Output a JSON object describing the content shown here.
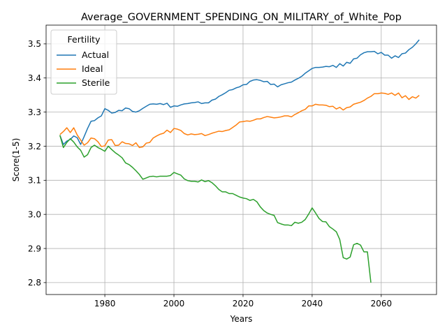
{
  "chart_data": {
    "type": "line",
    "title": "Average_GOVERNMENT_SPENDING_ON_MILITARY_of_White_Pop",
    "xlabel": "Years",
    "ylabel": "Score(1-5)",
    "xlim": [
      1963,
      2076
    ],
    "ylim": [
      2.765,
      3.555
    ],
    "xticks": [
      1980,
      2000,
      2020,
      2040,
      2060
    ],
    "yticks": [
      2.8,
      2.9,
      3.0,
      3.1,
      3.2,
      3.3,
      3.4,
      3.5
    ],
    "ytick_labels": [
      "2.8",
      "2.9",
      "3.0",
      "3.1",
      "3.2",
      "3.3",
      "3.4",
      "3.5"
    ],
    "grid": true,
    "legend": {
      "title": "Fertility",
      "position": "top-left"
    },
    "series": [
      {
        "name": "Actual",
        "color": "#1f77b4",
        "points": [
          [
            1967,
            3.232
          ],
          [
            1968,
            3.205
          ],
          [
            1969,
            3.215
          ],
          [
            1970,
            3.22
          ],
          [
            1971,
            3.23
          ],
          [
            1972,
            3.225
          ],
          [
            1973,
            3.205
          ],
          [
            1974,
            3.228
          ],
          [
            1975,
            3.252
          ],
          [
            1976,
            3.273
          ],
          [
            1977,
            3.275
          ],
          [
            1978,
            3.283
          ],
          [
            1979,
            3.289
          ],
          [
            1980,
            3.31
          ],
          [
            1981,
            3.305
          ],
          [
            1982,
            3.297
          ],
          [
            1983,
            3.299
          ],
          [
            1984,
            3.305
          ],
          [
            1985,
            3.304
          ],
          [
            1986,
            3.312
          ],
          [
            1987,
            3.31
          ],
          [
            1988,
            3.302
          ],
          [
            1989,
            3.3
          ],
          [
            1990,
            3.304
          ],
          [
            1991,
            3.311
          ],
          [
            1992,
            3.317
          ],
          [
            1993,
            3.323
          ],
          [
            1994,
            3.324
          ],
          [
            1995,
            3.323
          ],
          [
            1996,
            3.325
          ],
          [
            1997,
            3.322
          ],
          [
            1998,
            3.326
          ],
          [
            1999,
            3.314
          ],
          [
            2000,
            3.318
          ],
          [
            2001,
            3.317
          ],
          [
            2002,
            3.321
          ],
          [
            2003,
            3.324
          ],
          [
            2004,
            3.325
          ],
          [
            2005,
            3.327
          ],
          [
            2006,
            3.328
          ],
          [
            2007,
            3.33
          ],
          [
            2008,
            3.325
          ],
          [
            2009,
            3.327
          ],
          [
            2010,
            3.327
          ],
          [
            2011,
            3.335
          ],
          [
            2012,
            3.338
          ],
          [
            2013,
            3.346
          ],
          [
            2014,
            3.351
          ],
          [
            2015,
            3.357
          ],
          [
            2016,
            3.364
          ],
          [
            2017,
            3.366
          ],
          [
            2018,
            3.371
          ],
          [
            2019,
            3.374
          ],
          [
            2020,
            3.38
          ],
          [
            2021,
            3.381
          ],
          [
            2022,
            3.39
          ],
          [
            2023,
            3.394
          ],
          [
            2024,
            3.395
          ],
          [
            2025,
            3.393
          ],
          [
            2026,
            3.389
          ],
          [
            2027,
            3.39
          ],
          [
            2028,
            3.381
          ],
          [
            2029,
            3.382
          ],
          [
            2030,
            3.374
          ],
          [
            2031,
            3.38
          ],
          [
            2032,
            3.383
          ],
          [
            2033,
            3.386
          ],
          [
            2034,
            3.388
          ],
          [
            2035,
            3.394
          ],
          [
            2036,
            3.399
          ],
          [
            2037,
            3.405
          ],
          [
            2038,
            3.414
          ],
          [
            2039,
            3.421
          ],
          [
            2040,
            3.428
          ],
          [
            2041,
            3.431
          ],
          [
            2042,
            3.431
          ],
          [
            2043,
            3.432
          ],
          [
            2044,
            3.434
          ],
          [
            2045,
            3.433
          ],
          [
            2046,
            3.437
          ],
          [
            2047,
            3.431
          ],
          [
            2048,
            3.442
          ],
          [
            2049,
            3.435
          ],
          [
            2050,
            3.446
          ],
          [
            2051,
            3.443
          ],
          [
            2052,
            3.456
          ],
          [
            2053,
            3.458
          ],
          [
            2054,
            3.468
          ],
          [
            2055,
            3.474
          ],
          [
            2056,
            3.477
          ],
          [
            2057,
            3.477
          ],
          [
            2058,
            3.478
          ],
          [
            2059,
            3.471
          ],
          [
            2060,
            3.475
          ],
          [
            2061,
            3.467
          ],
          [
            2062,
            3.467
          ],
          [
            2063,
            3.458
          ],
          [
            2064,
            3.465
          ],
          [
            2065,
            3.46
          ],
          [
            2066,
            3.471
          ],
          [
            2067,
            3.473
          ],
          [
            2068,
            3.483
          ],
          [
            2069,
            3.49
          ],
          [
            2070,
            3.5
          ],
          [
            2071,
            3.512
          ]
        ]
      },
      {
        "name": "Ideal",
        "color": "#ff7f0e",
        "points": [
          [
            1967,
            3.234
          ],
          [
            1968,
            3.243
          ],
          [
            1969,
            3.254
          ],
          [
            1970,
            3.24
          ],
          [
            1971,
            3.254
          ],
          [
            1972,
            3.233
          ],
          [
            1973,
            3.218
          ],
          [
            1974,
            3.203
          ],
          [
            1975,
            3.21
          ],
          [
            1976,
            3.224
          ],
          [
            1977,
            3.222
          ],
          [
            1978,
            3.213
          ],
          [
            1979,
            3.199
          ],
          [
            1980,
            3.201
          ],
          [
            1981,
            3.218
          ],
          [
            1982,
            3.219
          ],
          [
            1983,
            3.202
          ],
          [
            1984,
            3.203
          ],
          [
            1985,
            3.213
          ],
          [
            1986,
            3.208
          ],
          [
            1987,
            3.207
          ],
          [
            1988,
            3.202
          ],
          [
            1989,
            3.21
          ],
          [
            1990,
            3.196
          ],
          [
            1991,
            3.198
          ],
          [
            1992,
            3.209
          ],
          [
            1993,
            3.211
          ],
          [
            1994,
            3.224
          ],
          [
            1995,
            3.23
          ],
          [
            1996,
            3.235
          ],
          [
            1997,
            3.238
          ],
          [
            1998,
            3.247
          ],
          [
            1999,
            3.24
          ],
          [
            2000,
            3.252
          ],
          [
            2001,
            3.25
          ],
          [
            2002,
            3.246
          ],
          [
            2003,
            3.237
          ],
          [
            2004,
            3.233
          ],
          [
            2005,
            3.236
          ],
          [
            2006,
            3.234
          ],
          [
            2007,
            3.235
          ],
          [
            2008,
            3.237
          ],
          [
            2009,
            3.231
          ],
          [
            2010,
            3.234
          ],
          [
            2011,
            3.238
          ],
          [
            2012,
            3.241
          ],
          [
            2013,
            3.244
          ],
          [
            2014,
            3.243
          ],
          [
            2015,
            3.246
          ],
          [
            2016,
            3.248
          ],
          [
            2017,
            3.255
          ],
          [
            2018,
            3.262
          ],
          [
            2019,
            3.271
          ],
          [
            2020,
            3.272
          ],
          [
            2021,
            3.274
          ],
          [
            2022,
            3.273
          ],
          [
            2023,
            3.276
          ],
          [
            2024,
            3.28
          ],
          [
            2025,
            3.28
          ],
          [
            2026,
            3.284
          ],
          [
            2027,
            3.287
          ],
          [
            2028,
            3.285
          ],
          [
            2029,
            3.283
          ],
          [
            2030,
            3.284
          ],
          [
            2031,
            3.286
          ],
          [
            2032,
            3.289
          ],
          [
            2033,
            3.289
          ],
          [
            2034,
            3.286
          ],
          [
            2035,
            3.293
          ],
          [
            2036,
            3.298
          ],
          [
            2037,
            3.304
          ],
          [
            2038,
            3.308
          ],
          [
            2039,
            3.318
          ],
          [
            2040,
            3.318
          ],
          [
            2041,
            3.323
          ],
          [
            2042,
            3.321
          ],
          [
            2043,
            3.321
          ],
          [
            2044,
            3.32
          ],
          [
            2045,
            3.316
          ],
          [
            2046,
            3.317
          ],
          [
            2047,
            3.309
          ],
          [
            2048,
            3.314
          ],
          [
            2049,
            3.306
          ],
          [
            2050,
            3.313
          ],
          [
            2051,
            3.315
          ],
          [
            2052,
            3.323
          ],
          [
            2053,
            3.326
          ],
          [
            2054,
            3.329
          ],
          [
            2055,
            3.334
          ],
          [
            2056,
            3.341
          ],
          [
            2057,
            3.346
          ],
          [
            2058,
            3.354
          ],
          [
            2059,
            3.354
          ],
          [
            2060,
            3.356
          ],
          [
            2061,
            3.355
          ],
          [
            2062,
            3.352
          ],
          [
            2063,
            3.356
          ],
          [
            2064,
            3.349
          ],
          [
            2065,
            3.356
          ],
          [
            2066,
            3.342
          ],
          [
            2067,
            3.348
          ],
          [
            2068,
            3.337
          ],
          [
            2069,
            3.345
          ],
          [
            2070,
            3.341
          ],
          [
            2071,
            3.349
          ]
        ]
      },
      {
        "name": "Sterile",
        "color": "#2ca02c",
        "points": [
          [
            1967,
            3.232
          ],
          [
            1968,
            3.196
          ],
          [
            1969,
            3.211
          ],
          [
            1970,
            3.222
          ],
          [
            1971,
            3.212
          ],
          [
            1972,
            3.198
          ],
          [
            1973,
            3.188
          ],
          [
            1974,
            3.168
          ],
          [
            1975,
            3.175
          ],
          [
            1976,
            3.196
          ],
          [
            1977,
            3.203
          ],
          [
            1978,
            3.196
          ],
          [
            1979,
            3.191
          ],
          [
            1980,
            3.185
          ],
          [
            1981,
            3.2
          ],
          [
            1982,
            3.19
          ],
          [
            1983,
            3.181
          ],
          [
            1984,
            3.174
          ],
          [
            1985,
            3.166
          ],
          [
            1986,
            3.151
          ],
          [
            1987,
            3.146
          ],
          [
            1988,
            3.138
          ],
          [
            1989,
            3.128
          ],
          [
            1990,
            3.117
          ],
          [
            1991,
            3.103
          ],
          [
            1992,
            3.107
          ],
          [
            1993,
            3.111
          ],
          [
            1994,
            3.112
          ],
          [
            1995,
            3.11
          ],
          [
            1996,
            3.112
          ],
          [
            1997,
            3.112
          ],
          [
            1998,
            3.112
          ],
          [
            1999,
            3.114
          ],
          [
            2000,
            3.123
          ],
          [
            2001,
            3.119
          ],
          [
            2002,
            3.115
          ],
          [
            2003,
            3.104
          ],
          [
            2004,
            3.099
          ],
          [
            2005,
            3.097
          ],
          [
            2006,
            3.097
          ],
          [
            2007,
            3.095
          ],
          [
            2008,
            3.101
          ],
          [
            2009,
            3.096
          ],
          [
            2010,
            3.099
          ],
          [
            2011,
            3.093
          ],
          [
            2012,
            3.084
          ],
          [
            2013,
            3.073
          ],
          [
            2014,
            3.066
          ],
          [
            2015,
            3.066
          ],
          [
            2016,
            3.061
          ],
          [
            2017,
            3.061
          ],
          [
            2018,
            3.056
          ],
          [
            2019,
            3.051
          ],
          [
            2020,
            3.048
          ],
          [
            2021,
            3.046
          ],
          [
            2022,
            3.041
          ],
          [
            2023,
            3.044
          ],
          [
            2024,
            3.037
          ],
          [
            2025,
            3.022
          ],
          [
            2026,
            3.011
          ],
          [
            2027,
            3.004
          ],
          [
            2028,
            3.0
          ],
          [
            2029,
            2.997
          ],
          [
            2030,
            2.976
          ],
          [
            2031,
            2.972
          ],
          [
            2032,
            2.969
          ],
          [
            2033,
            2.969
          ],
          [
            2034,
            2.967
          ],
          [
            2035,
            2.977
          ],
          [
            2036,
            2.974
          ],
          [
            2037,
            2.977
          ],
          [
            2038,
            2.985
          ],
          [
            2039,
            3.001
          ],
          [
            2040,
            3.019
          ],
          [
            2041,
            3.004
          ],
          [
            2042,
            2.988
          ],
          [
            2043,
            2.979
          ],
          [
            2044,
            2.978
          ],
          [
            2045,
            2.964
          ],
          [
            2046,
            2.957
          ],
          [
            2047,
            2.949
          ],
          [
            2048,
            2.926
          ],
          [
            2049,
            2.873
          ],
          [
            2050,
            2.869
          ],
          [
            2051,
            2.875
          ],
          [
            2052,
            2.911
          ],
          [
            2053,
            2.915
          ],
          [
            2054,
            2.91
          ],
          [
            2055,
            2.89
          ],
          [
            2056,
            2.89
          ],
          [
            2057,
            2.8
          ]
        ]
      }
    ]
  }
}
